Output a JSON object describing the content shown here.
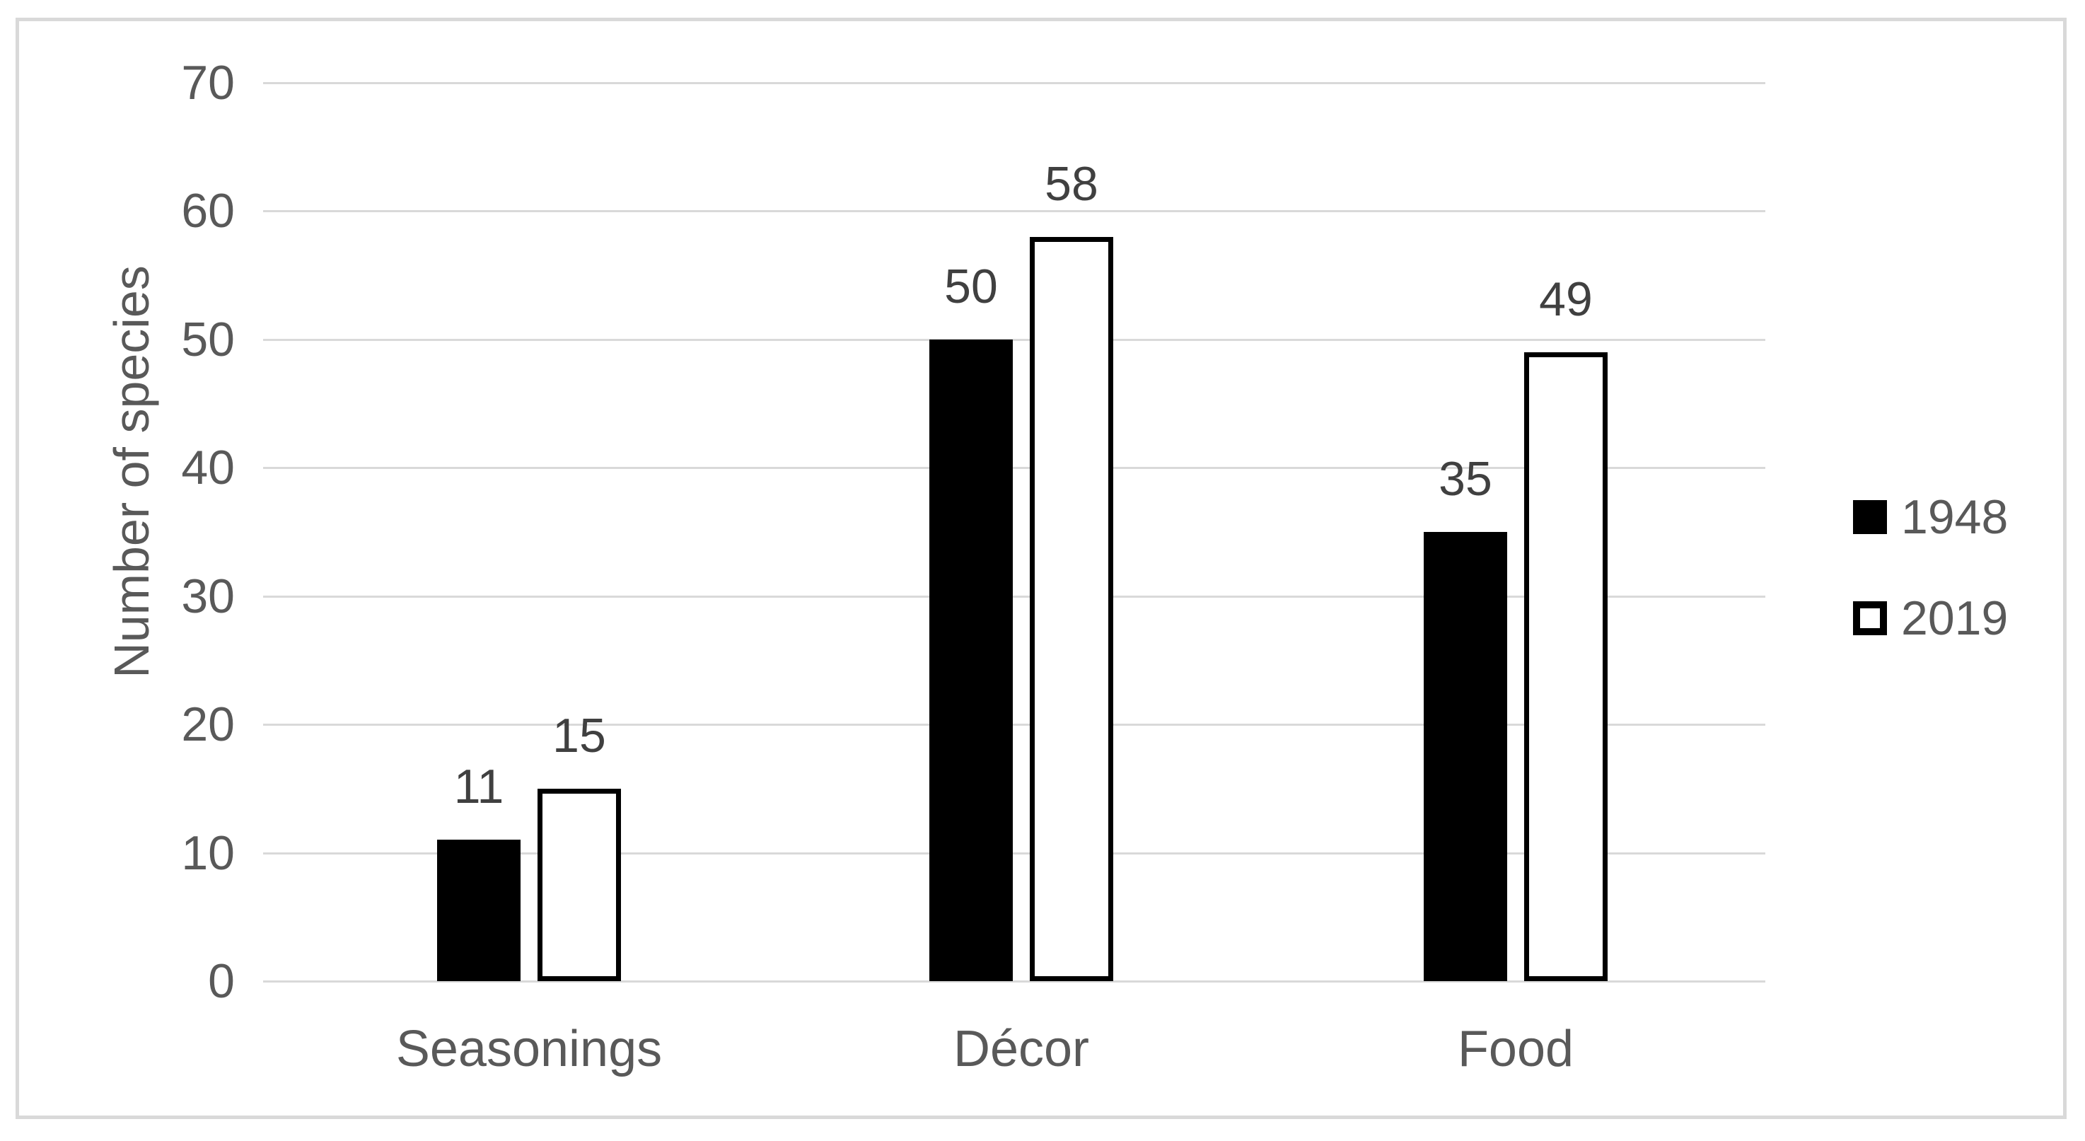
{
  "chart_data": {
    "type": "bar",
    "title": "",
    "categories": [
      "Seasonings",
      "Décor",
      "Food"
    ],
    "series": [
      {
        "name": "1948",
        "values": [
          11,
          50,
          35
        ],
        "fill": "#000000",
        "stroke": "#000000"
      },
      {
        "name": "2019",
        "values": [
          15,
          58,
          49
        ],
        "fill": "#ffffff",
        "stroke": "#000000"
      }
    ],
    "xlabel": "",
    "ylabel": "Number of species",
    "ylim": [
      0,
      70
    ],
    "ytick_step": 10,
    "yticks": [
      0,
      10,
      20,
      30,
      40,
      50,
      60,
      70
    ],
    "grid": "horizontal",
    "data_labels": true,
    "legend_position": "right"
  },
  "legend": {
    "items": [
      {
        "label": "1948",
        "swatch": "black-filled-square"
      },
      {
        "label": "2019",
        "swatch": "white-square-black-outline"
      }
    ]
  },
  "colors": {
    "background": "#ffffff",
    "frame_border": "#d9d9d9",
    "gridline": "#d9d9d9",
    "axis_text": "#595959",
    "data_label_text": "#404040",
    "series_1948": "#000000",
    "series_2019_fill": "#ffffff",
    "series_2019_outline": "#000000"
  }
}
